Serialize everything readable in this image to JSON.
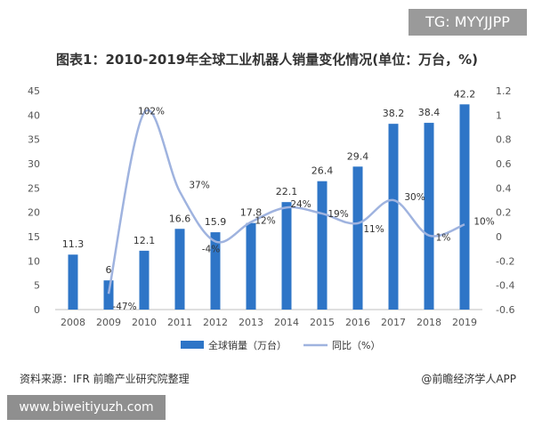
{
  "badge_text": "TG: MYYJJPP",
  "footer": {
    "source": "资料来源：IFR 前瞻产业研究院整理",
    "credit": "@前瞻经济学人APP"
  },
  "banner_text": "www.biweitiyuzh.com",
  "colors": {
    "bar": "#2e75c7",
    "line": "#9fb3df",
    "axis_text": "#555555",
    "grid": "#dddddd"
  },
  "chart_data": {
    "type": "bar",
    "title": "图表1：2010-2019年全球工业机器人销量变化情况(单位：万台，%)",
    "categories": [
      "2008",
      "2009",
      "2010",
      "2011",
      "2012",
      "2013",
      "2014",
      "2015",
      "2016",
      "2017",
      "2018",
      "2019"
    ],
    "series": [
      {
        "name": "全球销量（万台）",
        "type": "bar",
        "axis": "left",
        "values": [
          11.3,
          6,
          12.1,
          16.6,
          15.9,
          17.8,
          22.1,
          26.4,
          29.4,
          38.2,
          38.4,
          42.2
        ],
        "labels": [
          "11.3",
          "6",
          "12.1",
          "16.6",
          "15.9",
          "17.8",
          "22.1",
          "26.4",
          "29.4",
          "38.2",
          "38.4",
          "42.2"
        ]
      },
      {
        "name": "同比（%）",
        "type": "line",
        "axis": "right",
        "values": [
          null,
          -0.47,
          1.02,
          0.37,
          -0.04,
          0.12,
          0.24,
          0.19,
          0.11,
          0.3,
          0.01,
          0.1
        ],
        "labels": [
          "",
          "-47%",
          "102%",
          "37%",
          "-4%",
          "12%",
          "24%",
          "19%",
          "11%",
          "30%",
          "1%",
          "10%"
        ]
      }
    ],
    "y_left": {
      "min": 0,
      "max": 45,
      "ticks": [
        "0",
        "5",
        "10",
        "15",
        "20",
        "25",
        "30",
        "35",
        "40",
        "45"
      ]
    },
    "y_right": {
      "min": -0.6,
      "max": 1.2,
      "ticks": [
        "-0.6",
        "-0.4",
        "-0.2",
        "0",
        "0.2",
        "0.4",
        "0.6",
        "0.8",
        "1",
        "1.2"
      ]
    },
    "legend_position": "bottom-center"
  }
}
